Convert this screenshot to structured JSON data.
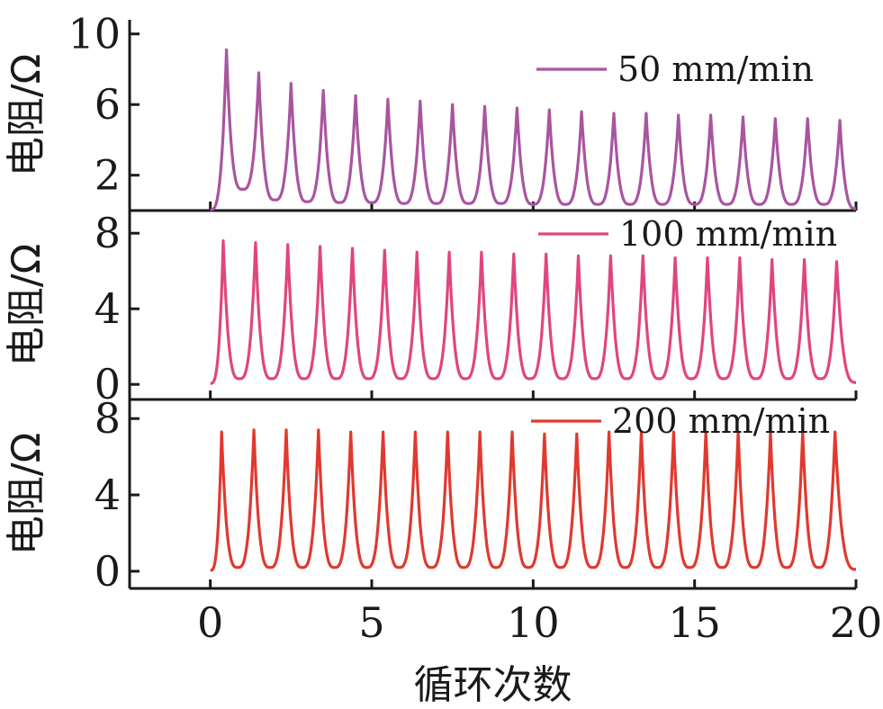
{
  "chart_data": {
    "type": "line",
    "xlabel": "循环次数",
    "xlim": [
      -2.5,
      20
    ],
    "xticks": [
      0,
      5,
      10,
      15,
      20
    ],
    "panels": [
      {
        "name": "50 mm/min",
        "ylabel": "电阻/Ω",
        "ylim": [
          0,
          10.8
        ],
        "yticks": [
          2,
          6,
          10
        ],
        "color": "#a855a0",
        "base": 0.05,
        "peaks": [
          {
            "x": 0.5,
            "y": 9.1,
            "min": 1.2
          },
          {
            "x": 1.5,
            "y": 7.8,
            "min": 0.6
          },
          {
            "x": 2.5,
            "y": 7.2,
            "min": 0.5
          },
          {
            "x": 3.5,
            "y": 6.8,
            "min": 0.45
          },
          {
            "x": 4.5,
            "y": 6.5,
            "min": 0.45
          },
          {
            "x": 5.5,
            "y": 6.3,
            "min": 0.4
          },
          {
            "x": 6.5,
            "y": 6.2,
            "min": 0.4
          },
          {
            "x": 7.5,
            "y": 6.0,
            "min": 0.4
          },
          {
            "x": 8.5,
            "y": 5.9,
            "min": 0.4
          },
          {
            "x": 9.5,
            "y": 5.8,
            "min": 0.35
          },
          {
            "x": 10.5,
            "y": 5.7,
            "min": 0.35
          },
          {
            "x": 11.5,
            "y": 5.6,
            "min": 0.35
          },
          {
            "x": 12.5,
            "y": 5.5,
            "min": 0.35
          },
          {
            "x": 13.5,
            "y": 5.5,
            "min": 0.35
          },
          {
            "x": 14.5,
            "y": 5.4,
            "min": 0.35
          },
          {
            "x": 15.5,
            "y": 5.4,
            "min": 0.35
          },
          {
            "x": 16.5,
            "y": 5.3,
            "min": 0.35
          },
          {
            "x": 17.5,
            "y": 5.2,
            "min": 0.35
          },
          {
            "x": 18.5,
            "y": 5.2,
            "min": 0.35
          },
          {
            "x": 19.5,
            "y": 5.1,
            "min": 0.35
          }
        ],
        "end_value": 0.1
      },
      {
        "name": "100 mm/min",
        "ylabel": "电阻/Ω",
        "ylim": [
          -0.8,
          9.2
        ],
        "yticks": [
          0,
          4,
          8
        ],
        "color": "#e0457f",
        "base": 0.05,
        "peaks": [
          {
            "x": 0.4,
            "y": 7.6,
            "min": 0.3
          },
          {
            "x": 1.4,
            "y": 7.5,
            "min": 0.3
          },
          {
            "x": 2.4,
            "y": 7.4,
            "min": 0.3
          },
          {
            "x": 3.4,
            "y": 7.3,
            "min": 0.3
          },
          {
            "x": 4.4,
            "y": 7.2,
            "min": 0.3
          },
          {
            "x": 5.4,
            "y": 7.1,
            "min": 0.3
          },
          {
            "x": 6.4,
            "y": 7.0,
            "min": 0.3
          },
          {
            "x": 7.4,
            "y": 7.0,
            "min": 0.3
          },
          {
            "x": 8.4,
            "y": 7.0,
            "min": 0.3
          },
          {
            "x": 9.4,
            "y": 6.9,
            "min": 0.3
          },
          {
            "x": 10.4,
            "y": 6.9,
            "min": 0.3
          },
          {
            "x": 11.4,
            "y": 6.8,
            "min": 0.3
          },
          {
            "x": 12.4,
            "y": 6.8,
            "min": 0.3
          },
          {
            "x": 13.4,
            "y": 6.8,
            "min": 0.3
          },
          {
            "x": 14.4,
            "y": 6.7,
            "min": 0.3
          },
          {
            "x": 15.4,
            "y": 6.7,
            "min": 0.3
          },
          {
            "x": 16.4,
            "y": 6.7,
            "min": 0.3
          },
          {
            "x": 17.4,
            "y": 6.6,
            "min": 0.3
          },
          {
            "x": 18.4,
            "y": 6.6,
            "min": 0.3
          },
          {
            "x": 19.4,
            "y": 6.5,
            "min": 0.3
          }
        ],
        "end_value": 0.1
      },
      {
        "name": "200 mm/min",
        "ylabel": "电阻/Ω",
        "ylim": [
          -0.9,
          9.0
        ],
        "yticks": [
          0,
          4,
          8
        ],
        "color": "#e0392e",
        "base": 0.05,
        "peaks": [
          {
            "x": 0.35,
            "y": 7.3,
            "min": 0.2
          },
          {
            "x": 1.35,
            "y": 7.4,
            "min": 0.2
          },
          {
            "x": 2.35,
            "y": 7.4,
            "min": 0.2
          },
          {
            "x": 3.35,
            "y": 7.4,
            "min": 0.2
          },
          {
            "x": 4.35,
            "y": 7.3,
            "min": 0.2
          },
          {
            "x": 5.35,
            "y": 7.3,
            "min": 0.2
          },
          {
            "x": 6.35,
            "y": 7.3,
            "min": 0.2
          },
          {
            "x": 7.35,
            "y": 7.3,
            "min": 0.2
          },
          {
            "x": 8.35,
            "y": 7.3,
            "min": 0.2
          },
          {
            "x": 9.35,
            "y": 7.3,
            "min": 0.2
          },
          {
            "x": 10.35,
            "y": 7.2,
            "min": 0.2
          },
          {
            "x": 11.35,
            "y": 7.2,
            "min": 0.2
          },
          {
            "x": 12.35,
            "y": 7.3,
            "min": 0.2
          },
          {
            "x": 13.35,
            "y": 7.3,
            "min": 0.2
          },
          {
            "x": 14.35,
            "y": 7.3,
            "min": 0.2
          },
          {
            "x": 15.35,
            "y": 7.3,
            "min": 0.2
          },
          {
            "x": 16.35,
            "y": 7.3,
            "min": 0.2
          },
          {
            "x": 17.35,
            "y": 7.3,
            "min": 0.2
          },
          {
            "x": 18.35,
            "y": 7.3,
            "min": 0.2
          },
          {
            "x": 19.35,
            "y": 7.3,
            "min": 0.2
          }
        ],
        "end_value": 0.1
      }
    ]
  }
}
